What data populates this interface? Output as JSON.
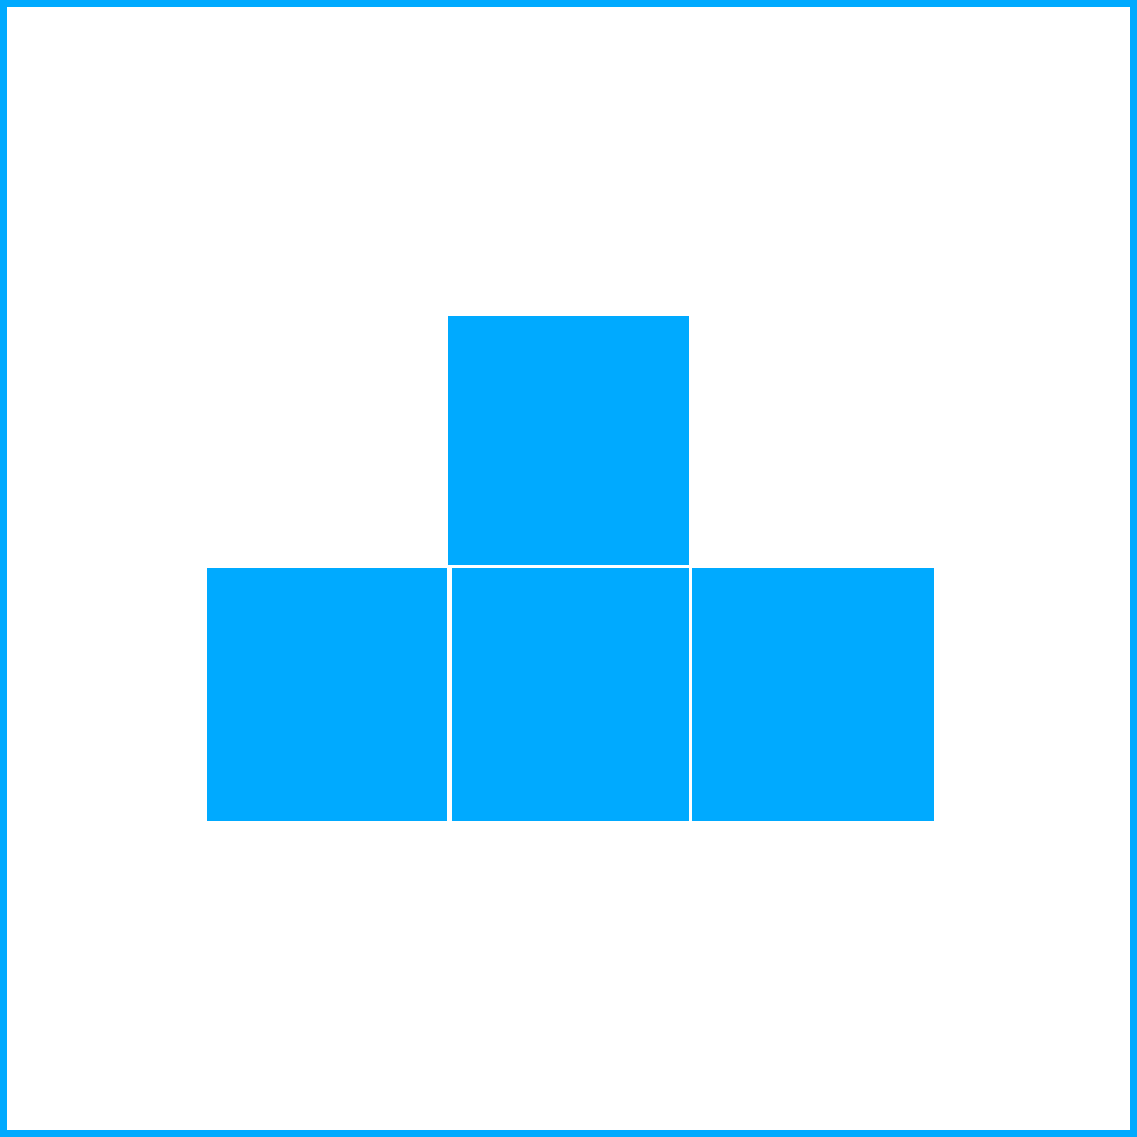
{
  "colors": {
    "accent": "#00aaff",
    "background": "#ffffff"
  },
  "shape": {
    "type": "t-tetromino",
    "blocks": [
      {
        "id": "top",
        "row": 0,
        "col": 1
      },
      {
        "id": "left",
        "row": 1,
        "col": 0
      },
      {
        "id": "center",
        "row": 1,
        "col": 1
      },
      {
        "id": "right",
        "row": 1,
        "col": 2
      }
    ]
  }
}
